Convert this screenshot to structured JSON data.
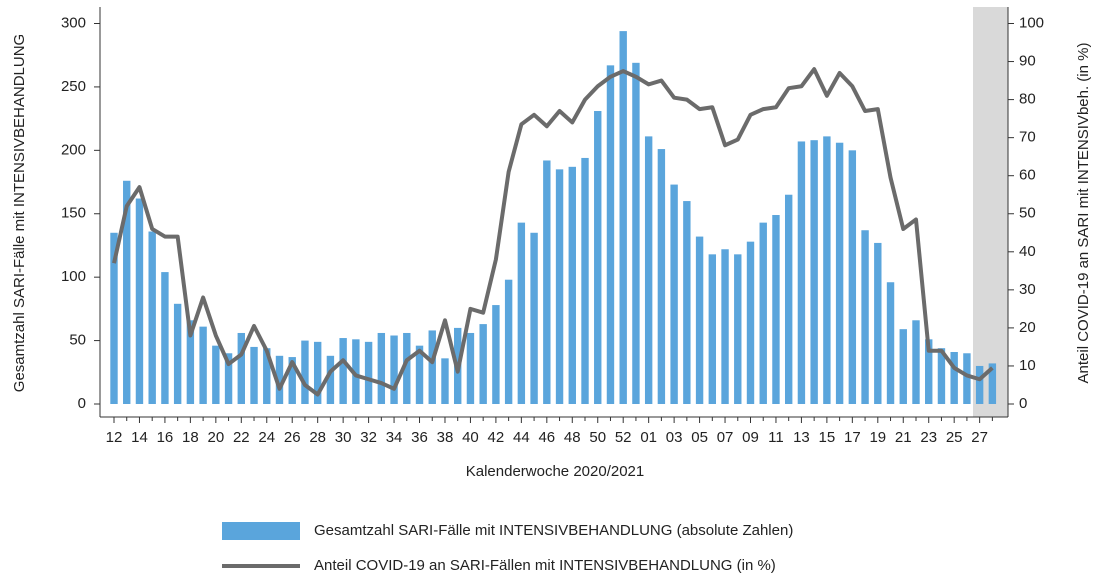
{
  "chart_data": {
    "type": "bar+line",
    "xlabel": "Kalenderwoche 2020/2021",
    "ylabel": "Gesamtzahl SARI-Fälle mit INTENSIVBEHANDLUNG",
    "y2label": "Anteil COVID-19 an SARI mit INTENSIVbeh. (in %)",
    "categories": [
      "12",
      null,
      "14",
      null,
      "16",
      null,
      "18",
      null,
      "20",
      null,
      "22",
      null,
      "24",
      null,
      "26",
      null,
      "28",
      null,
      "30",
      null,
      "32",
      null,
      "34",
      null,
      "36",
      null,
      "38",
      null,
      "40",
      null,
      "42",
      null,
      "44",
      null,
      "46",
      null,
      "48",
      null,
      "50",
      null,
      "52",
      null,
      "01",
      null,
      "03",
      null,
      "05",
      null,
      "07",
      null,
      "09",
      null,
      "11",
      null,
      "13",
      null,
      "15",
      null,
      "17",
      null,
      "19",
      null,
      "21",
      null,
      "23",
      null,
      "25",
      null,
      "27",
      null
    ],
    "series": [
      {
        "name": "Gesamtzahl SARI-Fälle mit INTENSIVBEHANDLUNG (absolute Zahlen)",
        "type": "bar",
        "color": "#5aa5dc",
        "values": [
          135,
          176,
          162,
          136,
          104,
          79,
          66,
          61,
          46,
          40,
          56,
          45,
          44,
          38,
          37,
          50,
          49,
          38,
          52,
          51,
          49,
          56,
          54,
          56,
          46,
          58,
          36,
          60,
          56,
          63,
          78,
          98,
          143,
          135,
          192,
          185,
          187,
          194,
          231,
          267,
          294,
          269,
          211,
          201,
          173,
          160,
          132,
          118,
          122,
          118,
          128,
          143,
          149,
          165,
          207,
          208,
          211,
          206,
          200,
          137,
          127,
          96,
          59,
          66,
          51,
          44,
          41,
          40,
          30,
          32
        ]
      },
      {
        "name": "Anteil COVID-19 an SARI-Fällen mit INTENSIVBEHANDLUNG (in %)",
        "type": "line",
        "axis": "y2",
        "color": "#6b6b6b",
        "values": [
          37,
          52,
          57,
          46,
          44,
          44,
          18,
          28,
          18,
          10.5,
          13,
          20.5,
          14,
          4,
          11,
          5,
          2.5,
          8.5,
          11.5,
          7.5,
          6.5,
          5.5,
          4,
          11.5,
          14,
          11,
          22,
          8.5,
          25,
          24,
          38,
          61,
          73.5,
          76,
          73,
          77,
          74,
          80,
          83.5,
          86,
          87.5,
          86,
          84,
          85,
          80.5,
          80,
          77.5,
          78,
          68,
          69.5,
          76,
          77.5,
          78,
          83,
          83.5,
          88,
          81,
          87,
          83.5,
          77,
          77.5,
          59.5,
          46,
          48.5,
          14,
          14,
          9.5,
          7.5,
          6.5,
          9.5
        ]
      }
    ],
    "ylim": [
      0,
      300
    ],
    "yticks": [
      0,
      50,
      100,
      150,
      200,
      250,
      300
    ],
    "y2lim": [
      0,
      100
    ],
    "y2ticks": [
      0,
      10,
      20,
      30,
      40,
      50,
      60,
      70,
      80,
      90,
      100
    ],
    "legend": "bottom"
  }
}
